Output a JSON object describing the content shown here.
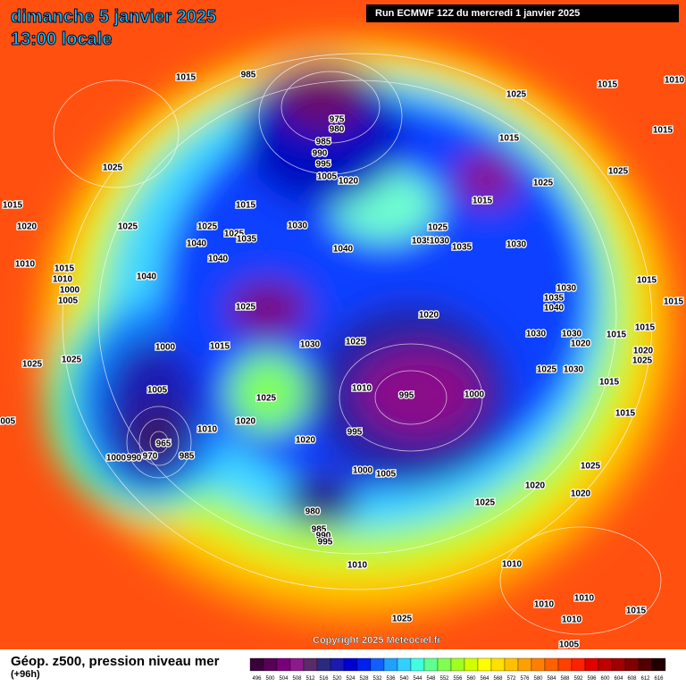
{
  "header": {
    "title": "dimanche 5 janvier 2025",
    "time": "13:00 locale"
  },
  "run": "Run ECMWF 12Z du mercredi 1 janvier 2025",
  "copyright": "Copyright 2025 Meteociel.fr",
  "legend": {
    "title": "Géop. z500, pression niveau mer",
    "subtitle": "(+96h)",
    "ticks": [
      496,
      500,
      504,
      508,
      512,
      516,
      520,
      524,
      528,
      532,
      536,
      540,
      544,
      548,
      552,
      556,
      560,
      564,
      568,
      572,
      576,
      580,
      584,
      588,
      592,
      596,
      600,
      604,
      608,
      612,
      616
    ],
    "colors": [
      "#3a003a",
      "#560056",
      "#7a007a",
      "#8c1a8c",
      "#5a2a6a",
      "#2a2a80",
      "#1a1ab0",
      "#0000d0",
      "#0020f0",
      "#1060ff",
      "#20a0ff",
      "#30d0ff",
      "#40ffe0",
      "#60ff90",
      "#80ff50",
      "#a0ff20",
      "#d0ff00",
      "#ffff00",
      "#ffe000",
      "#ffc000",
      "#ffa000",
      "#ff8000",
      "#ff6000",
      "#ff4000",
      "#ff2000",
      "#e00000",
      "#c00000",
      "#a00000",
      "#800000",
      "#500000",
      "#200000"
    ]
  },
  "isobar_labels": [
    "1015",
    "985",
    "1025",
    "1015",
    "1010",
    "1015",
    "975",
    "980",
    "985",
    "990",
    "995",
    "1005",
    "1020",
    "1015",
    "1025",
    "1025",
    "1015",
    "1025",
    "1015",
    "1015",
    "1030",
    "1025",
    "1025",
    "1035",
    "1025",
    "1040",
    "1040",
    "1035",
    "1030",
    "1035",
    "1030",
    "1025",
    "1020",
    "1010",
    "1015",
    "1010",
    "1000",
    "1005",
    "1040",
    "1040",
    "1030",
    "1035",
    "1040",
    "1025",
    "1020",
    "1030",
    "1025",
    "1015",
    "1000",
    "1030",
    "1030",
    "1020",
    "1015",
    "1015",
    "1015",
    "1015",
    "1020",
    "1025",
    "1025",
    "1025",
    "1025",
    "1030",
    "1015",
    "1010",
    "995",
    "1000",
    "1005",
    "1025",
    "1015",
    "1020",
    "1010",
    "995",
    "1020",
    "965",
    "1000",
    "990",
    "970",
    "985",
    "1000",
    "1005",
    "1025",
    "1020",
    "1020",
    "1025",
    "980",
    "985",
    "990",
    "995",
    "1010",
    "1010",
    "1010",
    "1010",
    "1010",
    "1015",
    "1025",
    "1005",
    "1005"
  ]
}
